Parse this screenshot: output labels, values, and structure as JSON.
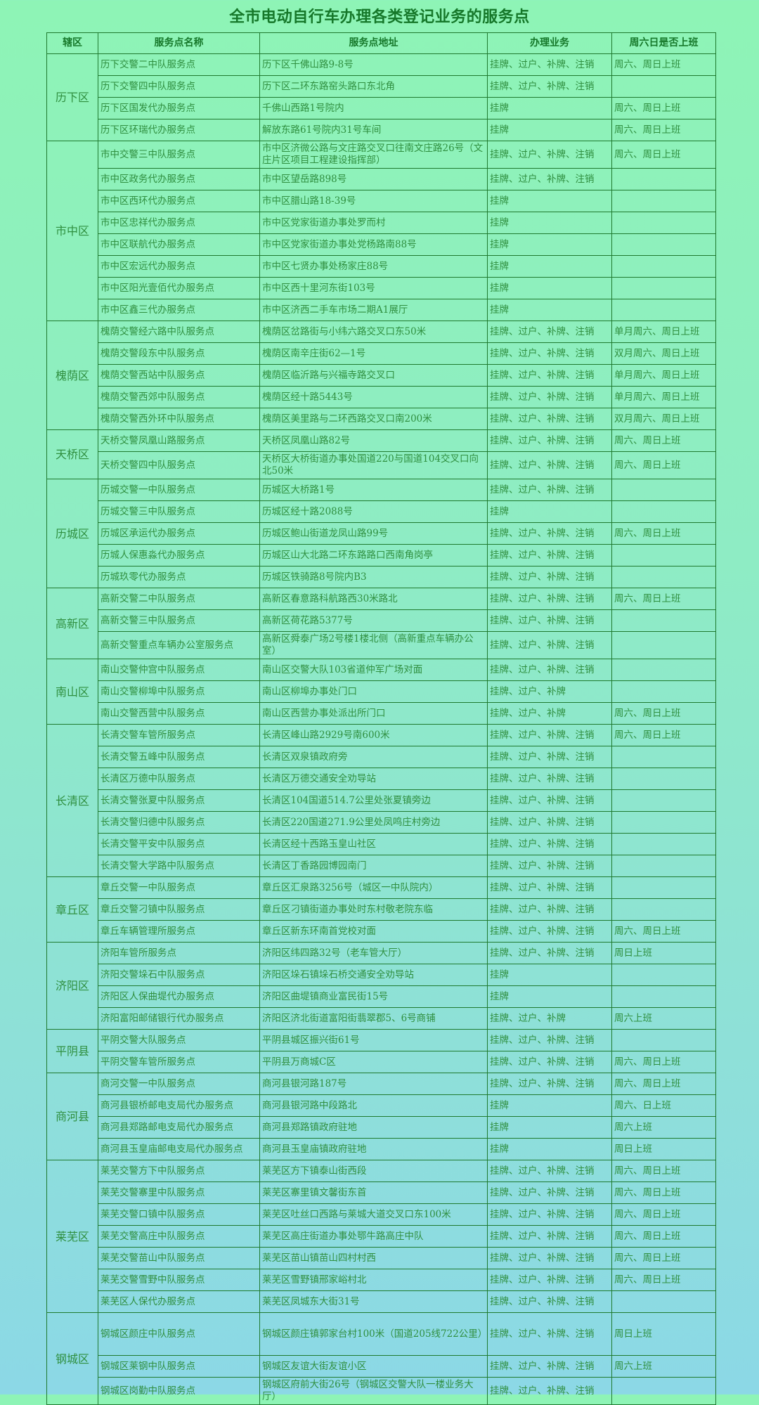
{
  "title": "全市电动自行车办理各类登记业务的服务点",
  "colors": {
    "text": "#2f8f3f",
    "border": "#1f7a2f",
    "title": "#16782a",
    "bg_top": "#8ef4b6",
    "bg_bottom": "#8cd8e6"
  },
  "headers": [
    "辖区",
    "服务点名称",
    "服务点地址",
    "办理业务",
    "周六日是否上班"
  ],
  "districts": [
    {
      "name": "历下区",
      "rows": [
        [
          "历下交警二中队服务点",
          "历下区千佛山路9-8号",
          "挂牌、过户、补牌、注销",
          "周六、周日上班"
        ],
        [
          "历下交警四中队服务点",
          "历下区二环东路窑头路口东北角",
          "挂牌、过户、补牌、注销",
          ""
        ],
        [
          "历下区国发代办服务点",
          "千佛山西路1号院内",
          "挂牌",
          "周六、周日上班"
        ],
        [
          "历下区环瑞代办服务点",
          "解放东路61号院内31号车间",
          "挂牌",
          "周六、周日上班"
        ]
      ]
    },
    {
      "name": "市中区",
      "rows": [
        [
          "市中交警三中队服务点",
          "市中区济微公路与文庄路交叉口往南文庄路26号（文庄片区项目工程建设指挥部）",
          "挂牌、过户、补牌、注销",
          "周六、周日上班"
        ],
        [
          "市中区政务代办服务点",
          "市中区望岳路898号",
          "挂牌、过户、补牌、注销",
          ""
        ],
        [
          "市中区西环代办服务点",
          "市中区腊山路18-39号",
          "挂牌",
          ""
        ],
        [
          "市中区忠祥代办服务点",
          "市中区党家街道办事处罗而村",
          "挂牌",
          ""
        ],
        [
          "市中区联航代办服务点",
          "市中区党家街道办事处党杨路南88号",
          "挂牌",
          ""
        ],
        [
          "市中区宏远代办服务点",
          "市中区七贤办事处杨家庄88号",
          "挂牌",
          ""
        ],
        [
          "市中区阳光壹佰代办服务点",
          "市中区西十里河东街103号",
          "挂牌",
          ""
        ],
        [
          "市中区鑫三代办服务点",
          "市中区济西二手车市场二期A1展厅",
          "挂牌",
          ""
        ]
      ]
    },
    {
      "name": "槐荫区",
      "rows": [
        [
          "槐荫交警经六路中队服务点",
          "槐荫区岔路街与小纬六路交叉口东50米",
          "挂牌、过户、补牌、注销",
          "单月周六、周日上班"
        ],
        [
          "槐荫交警段东中队服务点",
          "槐荫区南辛庄街62—1号",
          "挂牌、过户、补牌、注销",
          "双月周六、周日上班"
        ],
        [
          "槐荫交警西站中队服务点",
          "槐荫区临沂路与兴福寺路交叉口",
          "挂牌、过户、补牌、注销",
          "单月周六、周日上班"
        ],
        [
          "槐荫交警西郊中队服务点",
          "槐荫区经十路5443号",
          "挂牌、过户、补牌、注销",
          "单月周六、周日上班"
        ],
        [
          "槐荫交警西外环中队服务点",
          "槐荫区美里路与二环西路交叉口南200米",
          "挂牌、过户、补牌、注销",
          "双月周六、周日上班"
        ]
      ]
    },
    {
      "name": "天桥区",
      "rows": [
        [
          "天桥交警凤凰山路服务点",
          "天桥区凤凰山路82号",
          "挂牌、过户、补牌、注销",
          "周六、周日上班"
        ],
        [
          "天桥交警四中队服务点",
          "天桥区大桥街道办事处国道220与国道104交叉口向北50米",
          "挂牌、过户、补牌、注销",
          "周六、周日上班"
        ]
      ]
    },
    {
      "name": "历城区",
      "rows": [
        [
          "历城交警一中队服务点",
          "历城区大桥路1号",
          "挂牌、过户、补牌、注销",
          ""
        ],
        [
          "历城交警三中队服务点",
          "历城区经十路2088号",
          "挂牌",
          ""
        ],
        [
          "历城区承运代办服务点",
          "历城区鲍山街道龙凤山路99号",
          "挂牌、过户、补牌、注销",
          "周六、周日上班"
        ],
        [
          "历城人保惠淼代办服务点",
          "历城区山大北路二环东路路口西南角岗亭",
          "挂牌、过户、补牌、注销",
          ""
        ],
        [
          "历城玖零代办服务点",
          "历城区铁骑路8号院内B3",
          "挂牌、过户、补牌、注销",
          ""
        ]
      ]
    },
    {
      "name": "高新区",
      "rows": [
        [
          "高新交警二中队服务点",
          "高新区春意路科航路西30米路北",
          "挂牌、过户、补牌、注销",
          "周六、周日上班"
        ],
        [
          "高新交警三中队服务点",
          "高新区荷花路5377号",
          "挂牌、过户、补牌、注销",
          ""
        ],
        [
          "高新交警重点车辆办公室服务点",
          "高新区舜泰广场2号楼1楼北侧（高新重点车辆办公室）",
          "挂牌、过户、补牌、注销",
          ""
        ]
      ]
    },
    {
      "name": "南山区",
      "rows": [
        [
          "南山交警仲宫中队服务点",
          "南山区交警大队103省道仲军广场对面",
          "挂牌、过户、补牌、注销",
          ""
        ],
        [
          "南山交警柳埠中队服务点",
          "南山区柳埠办事处门口",
          "挂牌、过户、补牌",
          ""
        ],
        [
          "南山交警西营中队服务点",
          "南山区西营办事处派出所门口",
          "挂牌、过户、补牌",
          "周六、周日上班"
        ]
      ]
    },
    {
      "name": "长清区",
      "rows": [
        [
          "长清交警车管所服务点",
          "长清区峰山路2929号南600米",
          "挂牌、过户、补牌、注销",
          "周六、周日上班"
        ],
        [
          "长清交警五峰中队服务点",
          "长清区双泉镇政府旁",
          "挂牌、过户、补牌、注销",
          ""
        ],
        [
          "长清区万德中队服务点",
          "长清区万德交通安全劝导站",
          "挂牌、过户、补牌、注销",
          ""
        ],
        [
          "长清交警张夏中队服务点",
          "长清区104国道514.7公里处张夏镇旁边",
          "挂牌、过户、补牌、注销",
          ""
        ],
        [
          "长清交警归德中队服务点",
          "长清区220国道271.9公里处凤鸣庄村旁边",
          "挂牌、过户、补牌、注销",
          ""
        ],
        [
          "长清交警平安中队服务点",
          "长清区经十西路玉皇山社区",
          "挂牌、过户、补牌、注销",
          ""
        ],
        [
          "长清交警大学路中队服务点",
          "长清区丁香路园博园南门",
          "挂牌、过户、补牌、注销",
          ""
        ]
      ]
    },
    {
      "name": "章丘区",
      "rows": [
        [
          "章丘交警一中队服务点",
          "章丘区汇泉路3256号（城区一中队院内）",
          "挂牌、过户、补牌、注销",
          ""
        ],
        [
          "章丘交警刁镇中队服务点",
          "章丘区刁镇街道办事处时东村敬老院东临",
          "挂牌、过户、补牌、注销",
          ""
        ],
        [
          "章丘车辆管理所服务点",
          "章丘区新东环南首党校对面",
          "挂牌、过户、补牌、注销",
          "周六、周日上班"
        ]
      ]
    },
    {
      "name": "济阳区",
      "rows": [
        [
          "济阳车管所服务点",
          "济阳区纬四路32号（老车管大厅）",
          "挂牌、过户、补牌、注销",
          "周日上班"
        ],
        [
          "济阳交警垛石中队服务点",
          "济阳区垛石镇垛石桥交通安全劝导站",
          "挂牌",
          ""
        ],
        [
          "济阳区人保曲堤代办服务点",
          "济阳区曲堤镇商业富民街15号",
          "挂牌",
          ""
        ],
        [
          "济阳富阳邮储银行代办服务点",
          "济阳区济北街道富阳街翡翠郡5、6号商铺",
          "挂牌、过户、补牌",
          "周六上班"
        ]
      ]
    },
    {
      "name": "平阴县",
      "rows": [
        [
          "平阴交警大队服务点",
          "平阴县城区振兴街61号",
          "挂牌、过户、补牌、注销",
          ""
        ],
        [
          "平阴交警车管所服务点",
          "平阴县万商城C区",
          "挂牌、过户、补牌、注销",
          "周六、周日上班"
        ]
      ]
    },
    {
      "name": "商河县",
      "rows": [
        [
          "商河交警一中队服务点",
          "商河县银河路187号",
          "挂牌、过户、补牌、注销",
          "周六、周日上班"
        ],
        [
          "商河县银桥邮电支局代办服务点",
          "商河县银河路中段路北",
          "挂牌",
          "周六、日上班"
        ],
        [
          "商河县郑路邮电支局代办服务点",
          "商河县郑路镇政府驻地",
          "挂牌",
          "周六上班"
        ],
        [
          "商河县玉皇庙邮电支局代办服务点",
          "商河县玉皇庙镇政府驻地",
          "挂牌",
          "周日上班"
        ]
      ]
    },
    {
      "name": "莱芜区",
      "rows": [
        [
          "莱芜交警方下中队服务点",
          "莱芜区方下镇泰山街西段",
          "挂牌、过户、补牌、注销",
          "周六、周日上班"
        ],
        [
          "莱芜交警寨里中队服务点",
          "莱芜区寨里镇文馨街东首",
          "挂牌、过户、补牌、注销",
          "周六、周日上班"
        ],
        [
          "莱芜交警口镇中队服务点",
          "莱芜区吐丝口西路与莱城大道交叉口东100米",
          "挂牌、过户、补牌、注销",
          "周六、周日上班"
        ],
        [
          "莱芜交警高庄中队服务点",
          "莱芜区高庄街道办事处鄂牛路高庄中队",
          "挂牌、过户、补牌、注销",
          "周六、周日上班"
        ],
        [
          "莱芜交警苗山中队服务点",
          "莱芜区苗山镇苗山四村村西",
          "挂牌、过户、补牌、注销",
          "周六、周日上班"
        ],
        [
          "莱芜交警雪野中队服务点",
          "莱芜区雪野镇邢家峪村北",
          "挂牌、过户、补牌、注销",
          "周六、周日上班"
        ],
        [
          "莱芜区人保代办服务点",
          "莱芜区凤城东大街31号",
          "挂牌、过户、补牌、注销",
          ""
        ]
      ]
    },
    {
      "name": "钢城区",
      "rows": [
        [
          "钢城区颜庄中队服务点",
          "钢城区颜庄镇郭家台村100米（国道205线722公里）",
          "挂牌、过户、补牌、注销",
          "周日上班"
        ],
        [
          "钢城区莱钢中队服务点",
          "钢城区友谊大街友谊小区",
          "挂牌、过户、补牌、注销",
          "周六上班"
        ],
        [
          "钢城区岗勤中队服务点",
          "钢城区府前大街26号（钢城区交警大队一楼业务大厅）",
          "挂牌、过户、补牌、注销",
          ""
        ]
      ]
    }
  ]
}
